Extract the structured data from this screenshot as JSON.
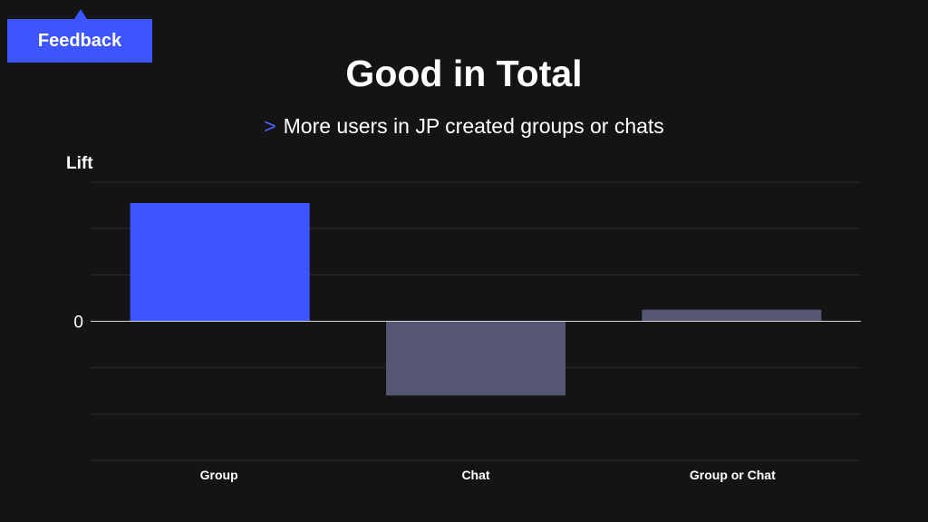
{
  "feedback": {
    "label": "Feedback"
  },
  "colors": {
    "background": "#151415",
    "accent": "#3d55ff",
    "bar_primary": "#3d55ff",
    "bar_secondary": "#555672",
    "gridline": "#2a2a2c",
    "zero_line": "#d8d8d8"
  },
  "chart_data": {
    "type": "bar",
    "title": "Good in Total",
    "subtitle_marker": ">",
    "subtitle": "More users in JP created groups or chats",
    "ylabel": "Lift",
    "xlabel": "",
    "categories": [
      "Group",
      "Chat",
      "Group or Chat"
    ],
    "values": [
      2.55,
      -1.6,
      0.25
    ],
    "bar_colors": [
      "#3d55ff",
      "#555672",
      "#555672"
    ],
    "ylim": [
      -3,
      3
    ],
    "yticks": [
      -3,
      -2,
      -1,
      0,
      1,
      2,
      3
    ],
    "ytick_labels_shown": [
      "0"
    ],
    "grid": true,
    "legend": "none"
  }
}
